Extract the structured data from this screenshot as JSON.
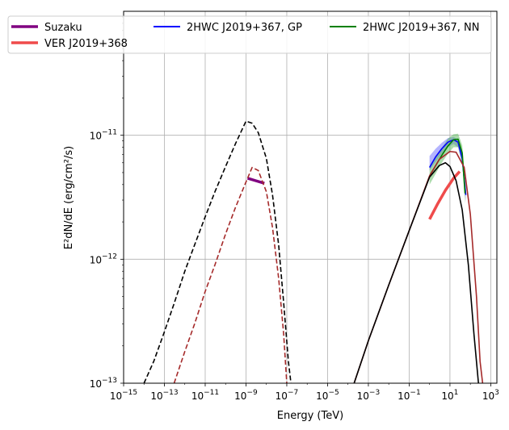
{
  "chart_data": {
    "type": "line",
    "title": "",
    "xlabel": "Energy (TeV)",
    "ylabel": "E²dN/dE (erg/cm²/s)",
    "xscale": "log",
    "yscale": "log",
    "xlim": [
      1e-15,
      2000
    ],
    "ylim": [
      1e-13,
      1e-10
    ],
    "grid": true,
    "legend": "top, 3 columns",
    "x_ticks": [
      {
        "value": 1e-15,
        "label": "10^-15"
      },
      {
        "value": 1e-13,
        "label": "10^-13"
      },
      {
        "value": 1e-11,
        "label": "10^-11"
      },
      {
        "value": 1e-09,
        "label": "10^-9"
      },
      {
        "value": 1e-07,
        "label": "10^-7"
      },
      {
        "value": 1e-05,
        "label": "10^-5"
      },
      {
        "value": 0.001,
        "label": "10^-3"
      },
      {
        "value": 0.1,
        "label": "10^-1"
      },
      {
        "value": 10,
        "label": "10^1"
      },
      {
        "value": 1000,
        "label": "10^3"
      }
    ],
    "y_ticks": [
      {
        "value": 1e-13,
        "label": "10^-13"
      },
      {
        "value": 1e-12,
        "label": "10^-12"
      },
      {
        "value": 1e-11,
        "label": "10^-11"
      }
    ],
    "legend_entries": [
      {
        "label": "Suzaku",
        "color": "#800080"
      },
      {
        "label": "VER J2019+368",
        "color": "#ef4b4b"
      },
      {
        "label": "2HWC J2019+367, GP",
        "color": "#0000ff"
      },
      {
        "label": "2HWC J2019+367, NN",
        "color": "#008000"
      }
    ],
    "series": [
      {
        "name": "Suzaku",
        "color": "#800080",
        "style": "thick-solid",
        "points": [
          [
            1.2e-09,
            4.5e-12
          ],
          [
            3e-09,
            4.3e-12
          ],
          [
            8e-09,
            4.1e-12
          ]
        ]
      },
      {
        "name": "VER J2019+368",
        "color": "#ef4b4b",
        "style": "thick-solid",
        "points": [
          [
            1.0,
            2.1e-12
          ],
          [
            2.5,
            2.8e-12
          ],
          [
            6,
            3.6e-12
          ],
          [
            15,
            4.5e-12
          ],
          [
            30,
            5.1e-12
          ]
        ]
      },
      {
        "name": "2HWC J2019+367, GP",
        "color": "#0000ff",
        "style": "solid",
        "band_color": "#6a6aff",
        "points": [
          [
            1.0,
            5.5e-12
          ],
          [
            2,
            6.7e-12
          ],
          [
            4,
            7.8e-12
          ],
          [
            8,
            8.8e-12
          ],
          [
            15,
            9.2e-12
          ],
          [
            25,
            8.8e-12
          ],
          [
            40,
            6.5e-12
          ],
          [
            60,
            3.3e-12
          ]
        ],
        "upper": [
          [
            1.0,
            6.8e-12
          ],
          [
            2,
            7.8e-12
          ],
          [
            4,
            8.7e-12
          ],
          [
            8,
            9.5e-12
          ],
          [
            15,
            9.7e-12
          ],
          [
            25,
            9.3e-12
          ],
          [
            40,
            7.2e-12
          ],
          [
            60,
            3.8e-12
          ]
        ],
        "lower": [
          [
            1.0,
            5.2e-12
          ],
          [
            2,
            6.1e-12
          ],
          [
            4,
            7.1e-12
          ],
          [
            8,
            8e-12
          ],
          [
            15,
            8.5e-12
          ],
          [
            25,
            8e-12
          ],
          [
            40,
            5.8e-12
          ],
          [
            60,
            2.9e-12
          ]
        ]
      },
      {
        "name": "2HWC J2019+367, NN",
        "color": "#008000",
        "style": "solid",
        "band_color": "#5ab85a",
        "points": [
          [
            1.0,
            4.7e-12
          ],
          [
            2,
            5.7e-12
          ],
          [
            4,
            6.9e-12
          ],
          [
            8,
            8.2e-12
          ],
          [
            15,
            9.2e-12
          ],
          [
            25,
            9.3e-12
          ],
          [
            40,
            7.2e-12
          ],
          [
            55,
            3.4e-12
          ]
        ],
        "upper": [
          [
            1.0,
            5.6e-12
          ],
          [
            2,
            6.6e-12
          ],
          [
            4,
            7.9e-12
          ],
          [
            8,
            9.4e-12
          ],
          [
            15,
            1.02e-11
          ],
          [
            25,
            1.03e-11
          ],
          [
            40,
            8.3e-12
          ],
          [
            55,
            4.2e-12
          ]
        ],
        "lower": [
          [
            1.0,
            4e-12
          ],
          [
            2,
            4.9e-12
          ],
          [
            4,
            6e-12
          ],
          [
            8,
            7.1e-12
          ],
          [
            15,
            8e-12
          ],
          [
            25,
            8e-12
          ],
          [
            40,
            6e-12
          ],
          [
            55,
            2.8e-12
          ]
        ]
      },
      {
        "color": "#000000",
        "style": "dashed",
        "points": [
          [
            1e-14,
            1e-13
          ],
          [
            3e-14,
            1.5e-13
          ],
          [
            1e-13,
            2.6e-13
          ],
          [
            3e-13,
            4.4e-13
          ],
          [
            1e-12,
            8e-13
          ],
          [
            3e-12,
            1.3e-12
          ],
          [
            1e-11,
            2.2e-12
          ],
          [
            3e-11,
            3.5e-12
          ],
          [
            1e-10,
            5.6e-12
          ],
          [
            3e-10,
            8.5e-12
          ],
          [
            1e-09,
            1.3e-11
          ],
          [
            2e-09,
            1.25e-11
          ],
          [
            4e-09,
            1.05e-11
          ],
          [
            1e-08,
            6.5e-12
          ],
          [
            2e-08,
            3.3e-12
          ],
          [
            4e-08,
            1.3e-12
          ],
          [
            7e-08,
            4.5e-13
          ],
          [
            1.2e-07,
            1.5e-13
          ],
          [
            1.6e-07,
            1e-13
          ]
        ]
      },
      {
        "color": "#a52a2a",
        "style": "dashed",
        "points": [
          [
            3e-13,
            1e-13
          ],
          [
            1e-12,
            1.8e-13
          ],
          [
            3e-12,
            3e-13
          ],
          [
            1e-11,
            5.5e-13
          ],
          [
            3e-11,
            9e-13
          ],
          [
            1e-10,
            1.6e-12
          ],
          [
            3e-10,
            2.6e-12
          ],
          [
            1e-09,
            4.2e-12
          ],
          [
            2e-09,
            5.5e-12
          ],
          [
            4e-09,
            5.2e-12
          ],
          [
            1e-08,
            3.5e-12
          ],
          [
            2e-08,
            1.8e-12
          ],
          [
            4e-08,
            7e-13
          ],
          [
            7e-08,
            2.5e-13
          ],
          [
            1e-07,
            1e-13
          ]
        ]
      },
      {
        "color": "#a52a2a",
        "style": "solid",
        "points": [
          [
            0.0002,
            1e-13
          ],
          [
            0.001,
            2.2e-13
          ],
          [
            0.01,
            6.2e-13
          ],
          [
            0.1,
            1.7e-12
          ],
          [
            1,
            4.7e-12
          ],
          [
            3,
            6.4e-12
          ],
          [
            10,
            7.4e-12
          ],
          [
            20,
            7.3e-12
          ],
          [
            50,
            5.5e-12
          ],
          [
            100,
            2.3e-12
          ],
          [
            200,
            5e-13
          ],
          [
            300,
            1.5e-13
          ],
          [
            400,
            1e-13
          ]
        ]
      },
      {
        "color": "#000000",
        "style": "solid",
        "points": [
          [
            0.0002,
            1e-13
          ],
          [
            0.001,
            2.2e-13
          ],
          [
            0.01,
            6.2e-13
          ],
          [
            0.1,
            1.7e-12
          ],
          [
            1,
            4.6e-12
          ],
          [
            3,
            5.7e-12
          ],
          [
            6,
            6e-12
          ],
          [
            10,
            5.6e-12
          ],
          [
            20,
            4.3e-12
          ],
          [
            40,
            2.5e-12
          ],
          [
            80,
            9e-13
          ],
          [
            150,
            2.5e-13
          ],
          [
            250,
            1e-13
          ]
        ]
      }
    ]
  }
}
